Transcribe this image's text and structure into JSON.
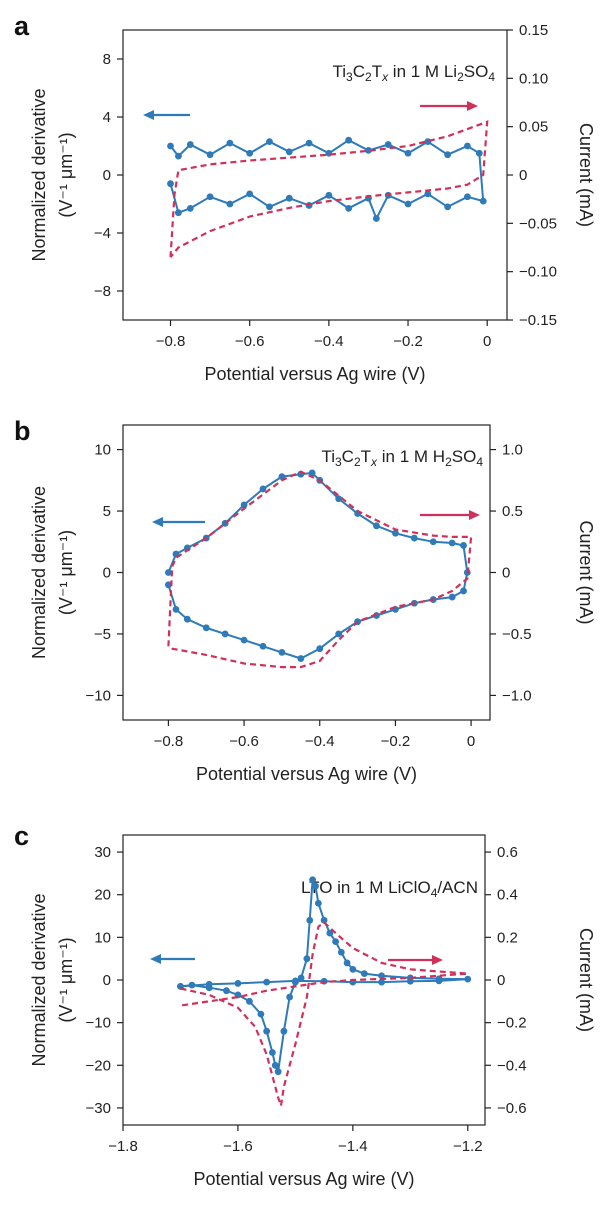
{
  "colors": {
    "derivative": "#2f7ab8",
    "current": "#d0315a",
    "axis": "#222222"
  },
  "chart_data": [
    {
      "panel": "a",
      "type": "line",
      "annotation": {
        "parts": [
          [
            "Ti",
            ""
          ],
          [
            "3",
            "sub"
          ],
          [
            "C",
            ""
          ],
          [
            "2",
            "sub"
          ],
          [
            "T",
            ""
          ],
          [
            "x",
            "sub-i"
          ],
          [
            " in 1 M Li",
            ""
          ],
          [
            "2",
            "sub"
          ],
          [
            "SO",
            ""
          ],
          [
            "4",
            "sub"
          ]
        ]
      },
      "xlabel": "Potential versus Ag wire (V)",
      "ylabel": "Normalized derivative",
      "ylabel_units": "(V⁻¹ μm⁻¹)",
      "y2label": "Current (mA)",
      "xlim": [
        -0.92,
        0.05
      ],
      "ylim": [
        -10,
        10
      ],
      "y2lim": [
        -0.15,
        0.15
      ],
      "xticks": [
        -0.8,
        -0.6,
        -0.4,
        -0.2,
        0
      ],
      "xtick_labels": [
        "−0.8",
        "−0.6",
        "−0.4",
        "−0.2",
        "0"
      ],
      "yticks": [
        -8,
        -4,
        0,
        4,
        8
      ],
      "ytick_labels": [
        "−8",
        "−4",
        "0",
        "4",
        "8"
      ],
      "y2ticks": [
        -0.15,
        -0.1,
        -0.05,
        0,
        0.05,
        0.1,
        0.15
      ],
      "y2tick_labels": [
        "−0.15",
        "−0.10",
        "−0.05",
        "0",
        "0.05",
        "0.10",
        "0.15"
      ],
      "series": [
        {
          "axis": "left",
          "style": "markers-line",
          "x": [
            -0.8,
            -0.78,
            -0.75,
            -0.7,
            -0.65,
            -0.6,
            -0.55,
            -0.5,
            -0.45,
            -0.4,
            -0.35,
            -0.3,
            -0.25,
            -0.2,
            -0.15,
            -0.1,
            -0.05,
            -0.02,
            -0.01,
            -0.05,
            -0.1,
            -0.15,
            -0.2,
            -0.25,
            -0.28,
            -0.3,
            -0.35,
            -0.4,
            -0.45,
            -0.5,
            -0.55,
            -0.6,
            -0.65,
            -0.7,
            -0.75,
            -0.78,
            -0.8
          ],
          "y": [
            2.0,
            1.3,
            2.1,
            1.4,
            2.2,
            1.5,
            2.3,
            1.6,
            2.2,
            1.5,
            2.4,
            1.7,
            2.1,
            1.5,
            2.3,
            1.4,
            2.0,
            1.5,
            -1.8,
            -1.5,
            -2.2,
            -1.3,
            -2.0,
            -1.4,
            -3.0,
            -1.6,
            -2.3,
            -1.4,
            -2.1,
            -1.6,
            -2.2,
            -1.3,
            -2.0,
            -1.5,
            -2.3,
            -2.6,
            -0.6
          ]
        },
        {
          "axis": "right",
          "style": "dashed",
          "x": [
            -0.8,
            -0.79,
            -0.78,
            -0.7,
            -0.6,
            -0.5,
            -0.4,
            -0.3,
            -0.2,
            -0.1,
            0.0,
            -0.01,
            -0.05,
            -0.1,
            -0.2,
            -0.3,
            -0.4,
            -0.5,
            -0.6,
            -0.7,
            -0.78,
            -0.8
          ],
          "y": [
            -0.085,
            -0.02,
            0.005,
            0.011,
            0.015,
            0.018,
            0.021,
            0.025,
            0.03,
            0.04,
            0.055,
            0.0,
            -0.01,
            -0.014,
            -0.018,
            -0.022,
            -0.027,
            -0.034,
            -0.043,
            -0.058,
            -0.075,
            -0.085
          ]
        }
      ]
    },
    {
      "panel": "b",
      "type": "line",
      "annotation": {
        "parts": [
          [
            "Ti",
            ""
          ],
          [
            "3",
            "sub"
          ],
          [
            "C",
            ""
          ],
          [
            "2",
            "sub"
          ],
          [
            "T",
            ""
          ],
          [
            "x",
            "sub-i"
          ],
          [
            " in 1 M H",
            ""
          ],
          [
            "2",
            "sub"
          ],
          [
            "SO",
            ""
          ],
          [
            "4",
            "sub"
          ]
        ]
      },
      "xlabel": "Potential versus Ag wire (V)",
      "ylabel": "Normalized derivative",
      "ylabel_units": "(V⁻¹ μm⁻¹)",
      "y2label": "Current (mA)",
      "xlim": [
        -0.92,
        0.05
      ],
      "ylim": [
        -12,
        12
      ],
      "y2lim": [
        -1.2,
        1.2
      ],
      "xticks": [
        -0.8,
        -0.6,
        -0.4,
        -0.2,
        0
      ],
      "xtick_labels": [
        "−0.8",
        "−0.6",
        "−0.4",
        "−0.2",
        "0"
      ],
      "yticks": [
        -10,
        -5,
        0,
        5,
        10
      ],
      "ytick_labels": [
        "−10",
        "−5",
        "0",
        "5",
        "10"
      ],
      "y2ticks": [
        -1.0,
        -0.5,
        0,
        0.5,
        1.0
      ],
      "y2tick_labels": [
        "−1.0",
        "−0.5",
        "0",
        "0.5",
        "1.0"
      ],
      "series": [
        {
          "axis": "left",
          "style": "markers-line",
          "x": [
            -0.8,
            -0.78,
            -0.75,
            -0.7,
            -0.65,
            -0.6,
            -0.55,
            -0.5,
            -0.45,
            -0.42,
            -0.4,
            -0.35,
            -0.3,
            -0.25,
            -0.2,
            -0.15,
            -0.1,
            -0.05,
            -0.02,
            -0.01,
            -0.02,
            -0.05,
            -0.1,
            -0.15,
            -0.2,
            -0.25,
            -0.3,
            -0.35,
            -0.4,
            -0.45,
            -0.5,
            -0.55,
            -0.6,
            -0.65,
            -0.7,
            -0.75,
            -0.78,
            -0.8
          ],
          "y": [
            0.0,
            1.5,
            2.0,
            2.8,
            4.0,
            5.5,
            6.8,
            7.8,
            8.0,
            8.1,
            7.5,
            6.0,
            4.8,
            3.8,
            3.2,
            2.8,
            2.5,
            2.4,
            2.2,
            0.0,
            -1.5,
            -2.0,
            -2.2,
            -2.5,
            -3.0,
            -3.5,
            -4.0,
            -5.0,
            -6.2,
            -7.0,
            -6.5,
            -6.0,
            -5.5,
            -5.0,
            -4.5,
            -3.8,
            -3.0,
            -1.0
          ]
        },
        {
          "axis": "right",
          "style": "dashed",
          "x": [
            -0.8,
            -0.79,
            -0.78,
            -0.7,
            -0.6,
            -0.5,
            -0.45,
            -0.4,
            -0.3,
            -0.2,
            -0.1,
            -0.05,
            0.0,
            -0.01,
            -0.05,
            -0.1,
            -0.2,
            -0.3,
            -0.35,
            -0.4,
            -0.45,
            -0.5,
            -0.6,
            -0.7,
            -0.79,
            -0.8
          ],
          "y": [
            -0.6,
            0.05,
            0.12,
            0.28,
            0.52,
            0.75,
            0.82,
            0.75,
            0.5,
            0.35,
            0.3,
            0.29,
            0.29,
            -0.05,
            -0.15,
            -0.22,
            -0.28,
            -0.4,
            -0.55,
            -0.72,
            -0.77,
            -0.77,
            -0.74,
            -0.67,
            -0.62,
            -0.6
          ]
        }
      ]
    },
    {
      "panel": "c",
      "type": "line",
      "annotation": {
        "parts": [
          [
            "LTO in 1 M LiClO",
            ""
          ],
          [
            "4",
            "sub"
          ],
          [
            "/ACN",
            ""
          ]
        ]
      },
      "xlabel": "Potential versus Ag wire (V)",
      "ylabel": "Normalized derivative",
      "ylabel_units": "(V⁻¹ μm⁻¹)",
      "y2label": "Current (mA)",
      "xlim": [
        -1.8,
        -1.17
      ],
      "ylim": [
        -34,
        34
      ],
      "y2lim": [
        -0.68,
        0.68
      ],
      "xticks": [
        -1.8,
        -1.6,
        -1.4,
        -1.2
      ],
      "xtick_labels": [
        "−1.8",
        "−1.6",
        "−1.4",
        "−1.2"
      ],
      "yticks": [
        -30,
        -20,
        -10,
        0,
        10,
        20,
        30
      ],
      "ytick_labels": [
        "−30",
        "−20",
        "−10",
        "0",
        "10",
        "20",
        "30"
      ],
      "y2ticks": [
        -0.6,
        -0.4,
        -0.2,
        0,
        0.2,
        0.4,
        0.6
      ],
      "y2tick_labels": [
        "−0.6",
        "−0.4",
        "−0.2",
        "0",
        "0.2",
        "0.4",
        "0.6"
      ],
      "series": [
        {
          "axis": "left",
          "style": "markers-line",
          "x": [
            -1.7,
            -1.68,
            -1.65,
            -1.62,
            -1.6,
            -1.58,
            -1.56,
            -1.55,
            -1.54,
            -1.535,
            -1.53,
            -1.52,
            -1.51,
            -1.5,
            -1.49,
            -1.48,
            -1.475,
            -1.47,
            -1.465,
            -1.46,
            -1.45,
            -1.44,
            -1.43,
            -1.42,
            -1.41,
            -1.4,
            -1.38,
            -1.35,
            -1.3,
            -1.25,
            -1.2,
            -1.25,
            -1.3,
            -1.35,
            -1.4,
            -1.45,
            -1.5,
            -1.55,
            -1.6,
            -1.65,
            -1.7
          ],
          "y": [
            -1.5,
            -1.2,
            -1.8,
            -2.5,
            -3.5,
            -5.0,
            -8.0,
            -12.0,
            -17.0,
            -20.0,
            -21.5,
            -12.0,
            -4.0,
            -0.5,
            0.5,
            5.0,
            14.0,
            23.5,
            22.0,
            18.0,
            14.0,
            11.0,
            9.0,
            6.5,
            4.0,
            2.5,
            1.5,
            1.0,
            0.5,
            0.3,
            0.2,
            -0.2,
            -0.3,
            -0.5,
            -0.5,
            -0.3,
            -0.2,
            -0.5,
            -0.8,
            -1.0,
            -1.5
          ]
        },
        {
          "axis": "right",
          "style": "dashed",
          "x": [
            -1.7,
            -1.65,
            -1.6,
            -1.57,
            -1.55,
            -1.54,
            -1.53,
            -1.525,
            -1.52,
            -1.5,
            -1.48,
            -1.47,
            -1.46,
            -1.45,
            -1.43,
            -1.4,
            -1.35,
            -1.3,
            -1.25,
            -1.2,
            -1.25,
            -1.3,
            -1.35,
            -1.4,
            -1.45,
            -1.5,
            -1.55,
            -1.6,
            -1.65,
            -1.7
          ],
          "y": [
            -0.04,
            -0.07,
            -0.13,
            -0.22,
            -0.35,
            -0.45,
            -0.55,
            -0.59,
            -0.5,
            -0.3,
            -0.08,
            0.12,
            0.25,
            0.27,
            0.22,
            0.15,
            0.08,
            0.05,
            0.04,
            0.03,
            0.02,
            0.01,
            0.005,
            0.0,
            -0.01,
            -0.03,
            -0.05,
            -0.08,
            -0.1,
            -0.12
          ]
        }
      ]
    }
  ]
}
